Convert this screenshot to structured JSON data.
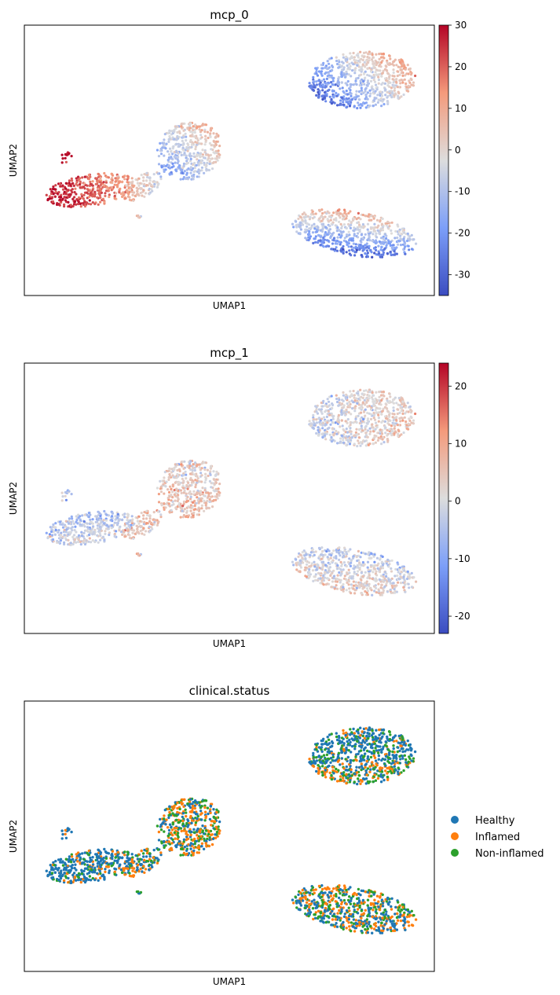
{
  "chart_data": [
    {
      "type": "scatter",
      "title": "mcp_0",
      "xlabel": "UMAP1",
      "ylabel": "UMAP2",
      "color_mode": "continuous",
      "colormap": "coolwarm",
      "colorbar": {
        "min": -35,
        "max": 30,
        "ticks": [
          30,
          20,
          10,
          0,
          -10,
          -20,
          -30
        ]
      },
      "clusters": [
        {
          "id": "left-upper",
          "center": [
            0.56,
            0.39
          ],
          "spread": [
            0.09,
            0.06
          ],
          "score_range": [
            -20,
            5
          ]
        },
        {
          "id": "left-lower",
          "center": [
            0.2,
            0.2
          ],
          "spread": [
            0.11,
            0.05
          ],
          "score_range": [
            8,
            28
          ]
        },
        {
          "id": "top-right",
          "center": [
            0.86,
            0.82
          ],
          "spread": [
            0.12,
            0.08
          ],
          "score_range": [
            -20,
            25
          ]
        },
        {
          "id": "bottom-right",
          "center": [
            0.79,
            -0.36
          ],
          "spread": [
            0.12,
            0.07
          ],
          "score_range": [
            -32,
            28
          ]
        }
      ]
    },
    {
      "type": "scatter",
      "title": "mcp_1",
      "xlabel": "UMAP1",
      "ylabel": "UMAP2",
      "color_mode": "continuous",
      "colormap": "coolwarm",
      "colorbar": {
        "min": -23,
        "max": 24,
        "ticks": [
          20,
          10,
          0,
          -10,
          -20
        ]
      },
      "clusters": [
        {
          "id": "left-upper",
          "center": [
            0.56,
            0.39
          ],
          "spread": [
            0.09,
            0.06
          ],
          "score_range": [
            0,
            12
          ]
        },
        {
          "id": "left-lower",
          "center": [
            0.2,
            0.2
          ],
          "spread": [
            0.11,
            0.05
          ],
          "score_range": [
            -8,
            5
          ]
        },
        {
          "id": "top-right",
          "center": [
            0.86,
            0.82
          ],
          "spread": [
            0.12,
            0.08
          ],
          "score_range": [
            -8,
            12
          ]
        },
        {
          "id": "bottom-right",
          "center": [
            0.79,
            -0.36
          ],
          "spread": [
            0.12,
            0.07
          ],
          "score_range": [
            -10,
            10
          ]
        }
      ]
    },
    {
      "type": "scatter",
      "title": "clinical.status",
      "xlabel": "UMAP1",
      "ylabel": "UMAP2",
      "color_mode": "categorical",
      "legend_position": "right",
      "categories": [
        {
          "name": "Healthy",
          "color": "#1f77b4"
        },
        {
          "name": "Inflamed",
          "color": "#ff7f0e"
        },
        {
          "name": "Non-inflamed",
          "color": "#2ca02c"
        }
      ]
    }
  ]
}
